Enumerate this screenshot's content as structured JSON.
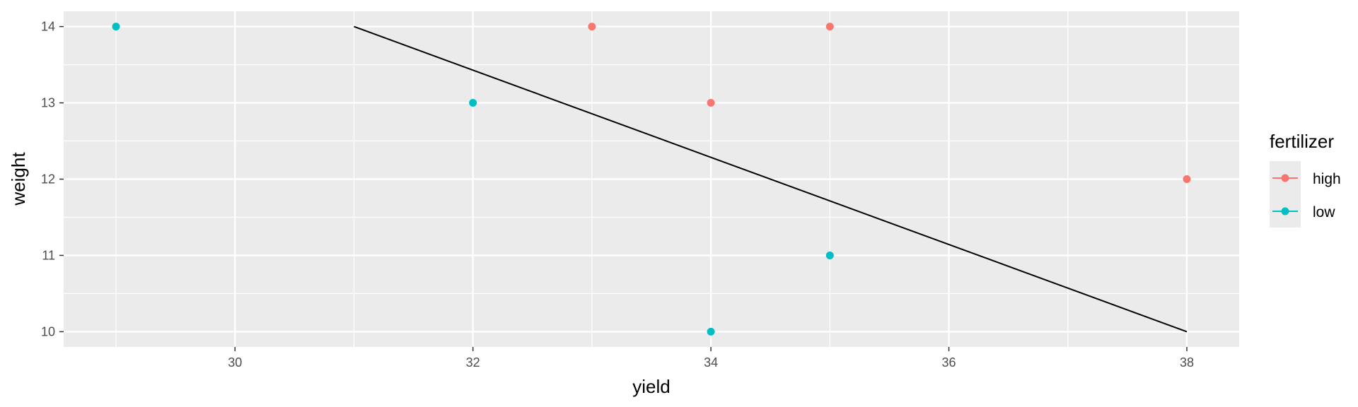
{
  "chart_data": {
    "type": "scatter",
    "xlabel": "yield",
    "ylabel": "weight",
    "xlim": [
      28.56,
      38.44
    ],
    "ylim": [
      9.8,
      14.2
    ],
    "x_ticks": [
      30,
      32,
      34,
      36,
      38
    ],
    "y_ticks": [
      10,
      11,
      12,
      13,
      14
    ],
    "grid": true,
    "legend": {
      "title": "fertilizer",
      "placement": "right",
      "entries": [
        "high",
        "low"
      ]
    },
    "series": [
      {
        "name": "high",
        "color": "#F8766D",
        "points": [
          {
            "x": 33,
            "y": 14
          },
          {
            "x": 34,
            "y": 13
          },
          {
            "x": 35,
            "y": 14
          },
          {
            "x": 38,
            "y": 12
          }
        ]
      },
      {
        "name": "low",
        "color": "#00BFC4",
        "points": [
          {
            "x": 29,
            "y": 14
          },
          {
            "x": 32,
            "y": 13
          },
          {
            "x": 34,
            "y": 10
          },
          {
            "x": 35,
            "y": 11
          }
        ]
      }
    ],
    "line": {
      "color": "#000000",
      "points": [
        {
          "x": 31,
          "y": 14
        },
        {
          "x": 38,
          "y": 10
        }
      ]
    }
  }
}
